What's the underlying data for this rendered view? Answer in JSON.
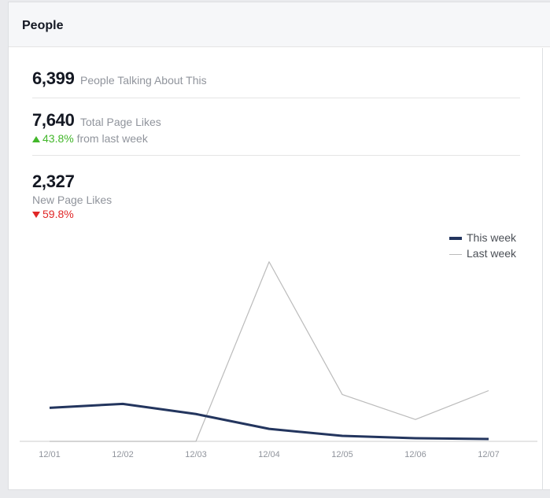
{
  "panel": {
    "title": "People"
  },
  "metrics": {
    "talking": {
      "value": "6,399",
      "label": "People Talking About This"
    },
    "total_likes": {
      "value": "7,640",
      "label": "Total Page Likes",
      "change_pct": "43.8%",
      "change_text": "from last week",
      "direction": "up"
    },
    "new_likes": {
      "value": "2,327",
      "label": "New Page Likes",
      "change_pct": "59.8%",
      "direction": "down"
    }
  },
  "chart_data": {
    "type": "line",
    "categories": [
      "12/01",
      "12/02",
      "12/03",
      "12/04",
      "12/05",
      "12/06",
      "12/07"
    ],
    "series": [
      {
        "name": "This week",
        "color": "#23355e",
        "values": [
          430,
          480,
          350,
          160,
          70,
          40,
          30
        ]
      },
      {
        "name": "Last week",
        "color": "#bbbbbb",
        "values": [
          0,
          0,
          0,
          2300,
          600,
          280,
          650
        ]
      }
    ],
    "ylim": [
      0,
      2600
    ],
    "grid": false,
    "legend": "top-right"
  }
}
